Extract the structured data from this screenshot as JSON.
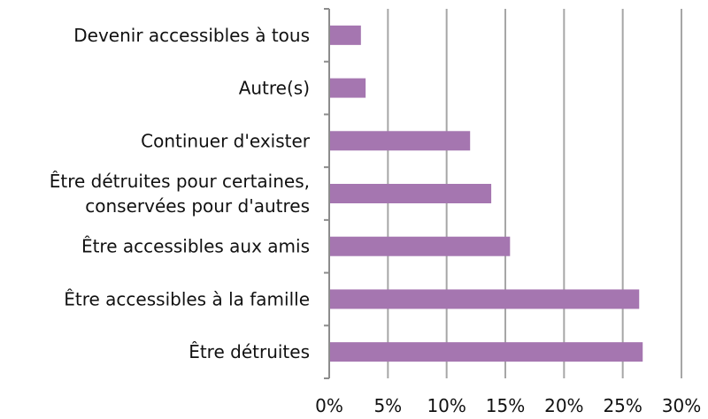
{
  "chart_data": {
    "type": "bar",
    "orientation": "horizontal",
    "categories": [
      "Devenir accessibles à tous",
      "Autre(s)",
      "Continuer d'exister",
      "Être détruites pour certaines, conservées pour d'autres",
      "Être accessibles aux amis",
      "Être accessibles à la famille",
      "Être détruites"
    ],
    "category_lines": [
      [
        "Devenir accessibles à tous"
      ],
      [
        "Autre(s)"
      ],
      [
        "Continuer d'exister"
      ],
      [
        "Être détruites pour certaines,",
        "conservées pour d'autres"
      ],
      [
        "Être accessibles aux amis"
      ],
      [
        "Être accessibles à la famille"
      ],
      [
        "Être détruites"
      ]
    ],
    "values": [
      2.7,
      3.1,
      12.0,
      13.8,
      15.4,
      26.4,
      26.7
    ],
    "xlim": [
      0,
      30
    ],
    "xticks": [
      0,
      5,
      10,
      15,
      20,
      25,
      30
    ],
    "xtick_labels": [
      "0%",
      "5%",
      "10%",
      "15%",
      "20%",
      "25%",
      "30%"
    ],
    "grid": "vertical",
    "legend": "none",
    "title": "",
    "xlabel": "",
    "ylabel": "",
    "bar_color": "#a576b0",
    "grid_color": "#a6a6a6",
    "axis_color": "#8c8c8c"
  }
}
